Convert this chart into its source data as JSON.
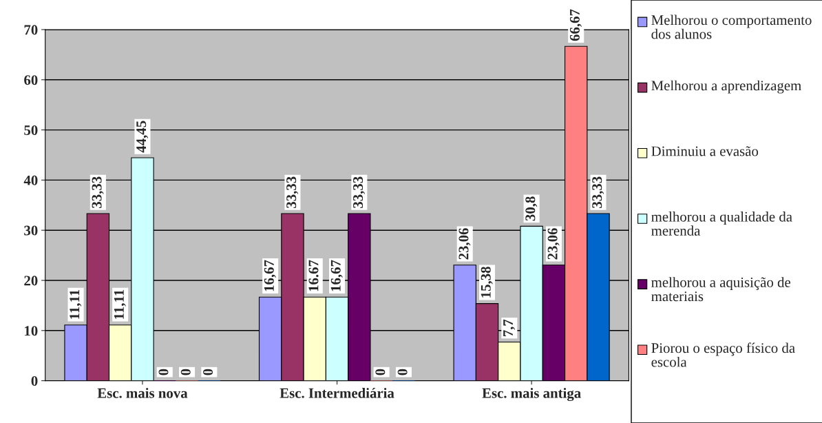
{
  "chart_data": {
    "type": "bar",
    "categories": [
      "Esc. mais nova",
      "Esc. Intermediária",
      "Esc. mais antiga"
    ],
    "series": [
      {
        "name": "Melhorou o comportamento dos alunos",
        "color": "#9999ff",
        "values": [
          11.11,
          16.67,
          23.06
        ],
        "value_labels": [
          "11,11",
          "16,67",
          "23,06"
        ]
      },
      {
        "name": "Melhorou a aprendizagem",
        "color": "#993366",
        "values": [
          33.33,
          33.33,
          15.38
        ],
        "value_labels": [
          "33,33",
          "33,33",
          "15,38"
        ]
      },
      {
        "name": "Diminuiu a evasão",
        "color": "#ffffcc",
        "values": [
          11.11,
          16.67,
          7.7
        ],
        "value_labels": [
          "11,11",
          "16.67",
          "7,7"
        ]
      },
      {
        "name": "melhorou a qualidade da merenda",
        "color": "#ccffff",
        "values": [
          44.45,
          16.67,
          30.8
        ],
        "value_labels": [
          "44,45",
          "16,67",
          "30,8"
        ]
      },
      {
        "name": "melhorou a aquisição de materiais",
        "color": "#660066",
        "values": [
          0,
          33.33,
          23.06
        ],
        "value_labels": [
          "0",
          "33,33",
          "23,06"
        ]
      },
      {
        "name": "Piorou o espaço físico da escola",
        "color": "#ff8080",
        "values": [
          0,
          0,
          66.67
        ],
        "value_labels": [
          "0",
          "0",
          "66,67"
        ]
      },
      {
        "color": "#0066cc",
        "values": [
          0,
          0,
          33.33
        ],
        "value_labels": [
          "0",
          "0",
          "33,33"
        ]
      }
    ],
    "ylim": [
      0,
      70
    ],
    "yticks": [
      0,
      10,
      20,
      30,
      40,
      50,
      60,
      70
    ],
    "grid": "y",
    "legend": "right"
  }
}
